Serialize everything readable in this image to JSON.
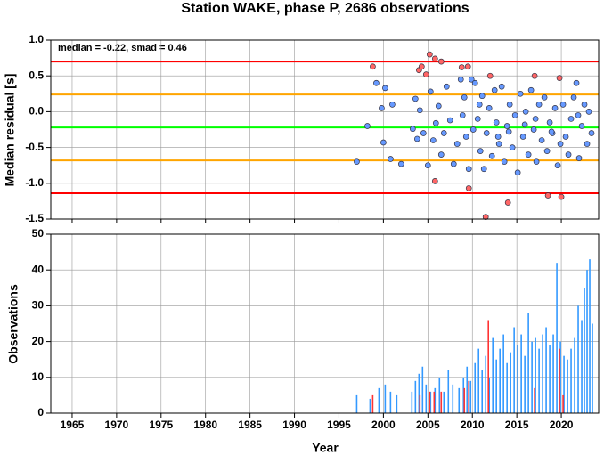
{
  "chart_data": [
    {
      "type": "scatter",
      "title": "Station WAKE, phase P, 2686 observations",
      "ylabel": "Median residual [s]",
      "annotation": "median = -0.22, smad = 0.46",
      "xlim": [
        1962.6,
        2024.2
      ],
      "ylim": [
        -1.5,
        1.0
      ],
      "yticks": [
        {
          "value": 1.0,
          "label": "1.0"
        },
        0.5,
        {
          "value": 0.0,
          "label": "0.0"
        },
        -0.5,
        {
          "value": -1.0,
          "label": "-1.0"
        },
        -1.5
      ],
      "grid": true,
      "reference_lines": [
        {
          "value": 0.7,
          "color": "#ff0000"
        },
        {
          "value": 0.24,
          "color": "#ffa500"
        },
        {
          "value": -0.22,
          "color": "#00ff00"
        },
        {
          "value": -0.68,
          "color": "#ffa500"
        },
        {
          "value": -1.14,
          "color": "#ff0000"
        }
      ],
      "series": [
        {
          "color": "#6699ff",
          "x": [
            1997,
            1998.2,
            1999.2,
            1999.8,
            2000,
            2000.2,
            2000.8,
            2001,
            2002,
            2003.3,
            2003.6,
            2003.8,
            2004.1,
            2004.5,
            2005,
            2005.3,
            2005.6,
            2005.9,
            2006.2,
            2006.5,
            2006.8,
            2007.1,
            2007.5,
            2007.9,
            2008.3,
            2008.7,
            2008.9,
            2009.1,
            2009.3,
            2009.6,
            2009.9,
            2010.1,
            2010.3,
            2010.6,
            2010.9,
            2011.1,
            2011.3,
            2011.6,
            2011.9,
            2012.2,
            2012.5,
            2012.7,
            2013,
            2013.3,
            2013.6,
            2013.9,
            2014.2,
            2014.5,
            2014.8,
            2015.1,
            2015.4,
            2015.7,
            2016,
            2016.3,
            2016.6,
            2016.9,
            2017.2,
            2017.5,
            2017.8,
            2018.1,
            2018.4,
            2018.7,
            2019,
            2019.3,
            2019.6,
            2019.9,
            2020.2,
            2020.5,
            2020.8,
            2021.1,
            2021.4,
            2021.7,
            2022,
            2022.3,
            2022.6,
            2022.9,
            2023.1,
            2023.4,
            2010.8,
            2012.9,
            2014.1,
            2015.9,
            2018.9,
            2021.9,
            2017.1
          ],
          "values": [
            -0.7,
            -0.2,
            0.4,
            0.05,
            -0.43,
            0.33,
            -0.66,
            0.1,
            -0.73,
            -0.24,
            0.18,
            -0.38,
            0.02,
            -0.3,
            -0.75,
            0.28,
            -0.4,
            -0.16,
            0.08,
            -0.6,
            -0.3,
            0.35,
            -0.12,
            -0.73,
            -0.45,
            0.45,
            -0.05,
            0.2,
            -0.35,
            -0.8,
            0.45,
            -0.25,
            0.4,
            -0.1,
            -0.55,
            0.22,
            -0.8,
            -0.3,
            0.05,
            -0.62,
            0.3,
            -0.15,
            -0.45,
            0.35,
            -0.7,
            -0.2,
            0.1,
            -0.5,
            -0.05,
            -0.85,
            0.25,
            -0.35,
            0.0,
            -0.6,
            0.3,
            -0.25,
            -0.7,
            0.1,
            -0.4,
            0.2,
            -0.55,
            -0.15,
            -0.3,
            0.05,
            -0.75,
            -0.45,
            0.1,
            -0.35,
            -0.6,
            -0.1,
            0.2,
            0.4,
            -0.65,
            -0.2,
            0.1,
            -0.45,
            0.0,
            -0.3,
            0.1,
            -0.35,
            -0.28,
            -0.18,
            -0.28,
            -0.05,
            -0.1
          ]
        },
        {
          "color": "#ff6666",
          "x": [
            1998.8,
            2004,
            2004.3,
            2004.8,
            2005.2,
            2005.8,
            2006.5,
            2008.8,
            2009.5,
            2012,
            2017,
            2019.8,
            2005.8,
            2009.6,
            2011.5,
            2014,
            2018.5,
            2020
          ],
          "values": [
            0.63,
            0.58,
            0.63,
            0.52,
            0.8,
            0.74,
            0.7,
            0.62,
            0.63,
            0.5,
            0.5,
            0.47,
            -0.97,
            -1.07,
            -1.47,
            -1.27,
            -1.17,
            -1.19
          ]
        }
      ]
    },
    {
      "type": "bar",
      "ylabel": "Observations",
      "xlabel": "Year",
      "xlim": [
        1962.6,
        2024.2
      ],
      "ylim": [
        0,
        50
      ],
      "xticks": [
        1965,
        1970,
        1975,
        1980,
        1985,
        1990,
        1995,
        2000,
        2005,
        2010,
        2015,
        2020
      ],
      "yticks": [
        0,
        10,
        20,
        30,
        40,
        50
      ],
      "grid": true,
      "series": [
        {
          "color": "#3399ff",
          "x": [
            1997,
            1998.5,
            1999.5,
            2000.2,
            2000.8,
            2001.5,
            2003.2,
            2003.6,
            2004,
            2004.4,
            2004.8,
            2005.3,
            2005.8,
            2006.3,
            2006.8,
            2007.3,
            2007.8,
            2008.5,
            2009,
            2009.4,
            2009.8,
            2010.3,
            2010.7,
            2011.1,
            2011.5,
            2011.9,
            2012.3,
            2012.7,
            2013.1,
            2013.5,
            2013.9,
            2014.3,
            2014.7,
            2015.1,
            2015.5,
            2015.9,
            2016.3,
            2016.7,
            2017.1,
            2017.5,
            2017.9,
            2018.3,
            2018.7,
            2019.1,
            2019.5,
            2019.9,
            2020.3,
            2020.7,
            2021.1,
            2021.5,
            2021.9,
            2022.3,
            2022.6,
            2022.9,
            2023.2,
            2023.5
          ],
          "values": [
            5,
            4,
            7,
            8,
            6,
            5,
            6,
            9,
            11,
            13,
            8,
            6,
            7,
            10,
            6,
            12,
            8,
            7,
            10,
            13,
            9,
            14,
            18,
            12,
            16,
            10,
            21,
            15,
            18,
            22,
            14,
            17,
            24,
            19,
            22,
            16,
            28,
            20,
            21,
            18,
            22,
            24,
            19,
            22,
            42,
            20,
            16,
            15,
            18,
            21,
            30,
            26,
            35,
            40,
            43,
            25
          ]
        },
        {
          "color": "#ff3333",
          "x": [
            1998.8,
            2004.1,
            2005.2,
            2005.7,
            2006.5,
            2009.1,
            2009.6,
            2011.8,
            2017,
            2019.8,
            2020.2
          ],
          "values": [
            5,
            5,
            6,
            6,
            6,
            7,
            9,
            26,
            7,
            18,
            5
          ]
        }
      ]
    }
  ]
}
